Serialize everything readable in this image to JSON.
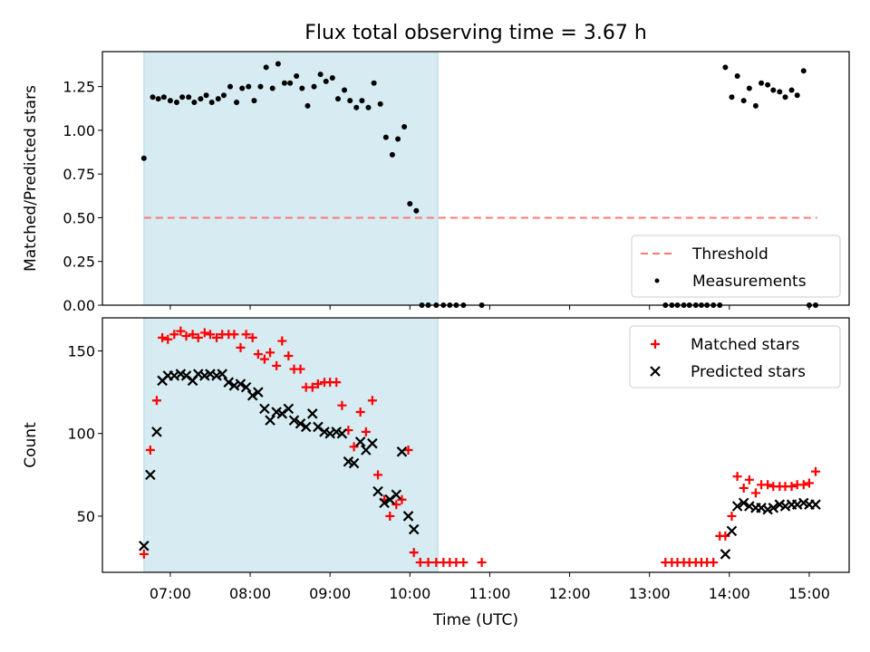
{
  "title": "Flux total observing time = 3.67 h",
  "chart_data": [
    {
      "type": "scatter",
      "ylabel": "Matched/Predicted stars",
      "ylim": [
        0,
        1.45
      ],
      "yticks": [
        0.0,
        0.25,
        0.5,
        0.75,
        1.0,
        1.25
      ],
      "ytick_labels": [
        "0.00",
        "0.25",
        "0.50",
        "0.75",
        "1.00",
        "1.25"
      ],
      "xlim": [
        6.15,
        15.5
      ],
      "shaded_span": [
        6.67,
        10.35
      ],
      "threshold": {
        "name": "Threshold",
        "value": 0.5,
        "x": [
          6.67,
          15.1
        ],
        "color": "#ff7777"
      },
      "legend": [
        "Threshold",
        "Measurements"
      ],
      "legend_loc": "lower right",
      "series": [
        {
          "name": "Measurements",
          "color": "#000000",
          "x": [
            6.67,
            6.78,
            6.85,
            6.92,
            7.0,
            7.08,
            7.15,
            7.23,
            7.3,
            7.38,
            7.45,
            7.52,
            7.6,
            7.67,
            7.75,
            7.83,
            7.9,
            7.98,
            8.05,
            8.13,
            8.2,
            8.28,
            8.35,
            8.43,
            8.5,
            8.58,
            8.65,
            8.72,
            8.8,
            8.88,
            8.95,
            9.03,
            9.1,
            9.18,
            9.25,
            9.33,
            9.4,
            9.48,
            9.55,
            9.63,
            9.7,
            9.78,
            9.85,
            9.93,
            10.0,
            10.08,
            10.15,
            10.23,
            10.33,
            10.42,
            10.5,
            10.58,
            10.67,
            10.9,
            13.2,
            13.28,
            13.35,
            13.43,
            13.5,
            13.58,
            13.65,
            13.72,
            13.8,
            13.88,
            13.95,
            14.03,
            14.1,
            14.18,
            14.25,
            14.33,
            14.4,
            14.48,
            14.55,
            14.63,
            14.7,
            14.78,
            14.85,
            14.93,
            15.0,
            15.08
          ],
          "y": [
            0.84,
            1.19,
            1.18,
            1.19,
            1.17,
            1.16,
            1.19,
            1.19,
            1.16,
            1.18,
            1.2,
            1.16,
            1.18,
            1.2,
            1.25,
            1.16,
            1.24,
            1.25,
            1.17,
            1.25,
            1.36,
            1.24,
            1.38,
            1.27,
            1.27,
            1.31,
            1.24,
            1.14,
            1.25,
            1.32,
            1.28,
            1.3,
            1.18,
            1.23,
            1.17,
            1.13,
            1.17,
            1.13,
            1.27,
            1.15,
            0.96,
            0.86,
            0.95,
            1.02,
            0.58,
            0.54,
            0.0,
            0.0,
            0.0,
            0.0,
            0.0,
            0.0,
            0.0,
            0.0,
            0.0,
            0.0,
            0.0,
            0.0,
            0.0,
            0.0,
            0.0,
            0.0,
            0.0,
            0.0,
            1.36,
            1.19,
            1.31,
            1.17,
            1.24,
            1.14,
            1.27,
            1.26,
            1.23,
            1.22,
            1.19,
            1.23,
            1.2,
            1.34,
            0.0,
            0.0
          ]
        }
      ]
    },
    {
      "type": "scatter",
      "xlabel": "Time (UTC)",
      "ylabel": "Count",
      "ylim": [
        16,
        170
      ],
      "yticks": [
        50,
        100,
        150
      ],
      "ytick_labels": [
        "50",
        "100",
        "150"
      ],
      "xlim": [
        6.15,
        15.5
      ],
      "xticks": [
        7,
        8,
        9,
        10,
        11,
        12,
        13,
        14,
        15
      ],
      "xtick_labels": [
        "07:00",
        "08:00",
        "09:00",
        "10:00",
        "11:00",
        "12:00",
        "13:00",
        "14:00",
        "15:00"
      ],
      "shaded_span": [
        6.67,
        10.35
      ],
      "legend": [
        "Matched stars",
        "Predicted stars"
      ],
      "legend_loc": "upper right",
      "series": [
        {
          "name": "Matched stars",
          "marker": "plus",
          "color": "#ff0000",
          "x": [
            6.67,
            6.75,
            6.83,
            6.9,
            6.97,
            7.05,
            7.13,
            7.2,
            7.28,
            7.35,
            7.43,
            7.5,
            7.58,
            7.65,
            7.73,
            7.8,
            7.88,
            7.95,
            8.03,
            8.1,
            8.18,
            8.25,
            8.33,
            8.4,
            8.48,
            8.55,
            8.63,
            8.7,
            8.78,
            8.85,
            8.93,
            9.0,
            9.08,
            9.15,
            9.23,
            9.3,
            9.38,
            9.45,
            9.53,
            9.6,
            9.68,
            9.75,
            9.83,
            9.9,
            9.98,
            10.05,
            10.13,
            10.23,
            10.33,
            10.42,
            10.5,
            10.58,
            10.67,
            10.9,
            13.2,
            13.28,
            13.35,
            13.43,
            13.5,
            13.58,
            13.65,
            13.72,
            13.8,
            13.88,
            13.95,
            14.03,
            14.1,
            14.18,
            14.25,
            14.33,
            14.4,
            14.48,
            14.55,
            14.63,
            14.7,
            14.78,
            14.85,
            14.93,
            15.0,
            15.08
          ],
          "y": [
            27,
            90,
            120,
            158,
            157,
            160,
            162,
            159,
            160,
            158,
            161,
            160,
            158,
            160,
            160,
            160,
            152,
            160,
            158,
            148,
            145,
            149,
            141,
            156,
            147,
            139,
            139,
            128,
            128,
            130,
            131,
            131,
            131,
            117,
            102,
            92,
            113,
            101,
            120,
            75,
            60,
            50,
            57,
            60,
            90,
            28,
            22,
            22,
            22,
            22,
            22,
            22,
            22,
            22,
            22,
            22,
            22,
            22,
            22,
            22,
            22,
            22,
            22,
            38,
            38,
            50,
            74,
            67,
            72,
            64,
            69,
            69,
            68,
            68,
            68,
            68,
            69,
            69,
            70,
            77
          ]
        },
        {
          "name": "Predicted stars",
          "marker": "x",
          "color": "#000000",
          "x": [
            6.67,
            6.75,
            6.83,
            6.9,
            6.97,
            7.05,
            7.13,
            7.2,
            7.28,
            7.35,
            7.43,
            7.5,
            7.58,
            7.65,
            7.73,
            7.8,
            7.88,
            7.95,
            8.03,
            8.1,
            8.18,
            8.25,
            8.33,
            8.4,
            8.48,
            8.55,
            8.63,
            8.7,
            8.78,
            8.85,
            8.93,
            9.0,
            9.08,
            9.15,
            9.23,
            9.3,
            9.38,
            9.45,
            9.53,
            9.6,
            9.68,
            9.75,
            9.83,
            9.9,
            9.98,
            10.05,
            10.13,
            10.23,
            10.33,
            13.95,
            14.03,
            14.1,
            14.18,
            14.25,
            14.33,
            14.4,
            14.48,
            14.55,
            14.63,
            14.7,
            14.78,
            14.85,
            14.93,
            15.0,
            15.08
          ],
          "y": [
            32,
            75,
            101,
            132,
            135,
            135,
            136,
            135,
            132,
            136,
            135,
            136,
            135,
            136,
            131,
            129,
            130,
            128,
            123,
            125,
            115,
            108,
            113,
            112,
            115,
            108,
            106,
            104,
            112,
            104,
            101,
            100,
            101,
            100,
            83,
            82,
            95,
            90,
            94,
            65,
            58,
            60,
            63,
            89,
            50,
            42,
            null,
            null,
            null,
            27,
            41,
            56,
            58,
            56,
            55,
            55,
            54,
            55,
            57,
            56,
            57,
            57,
            58,
            57,
            57
          ]
        }
      ]
    }
  ]
}
